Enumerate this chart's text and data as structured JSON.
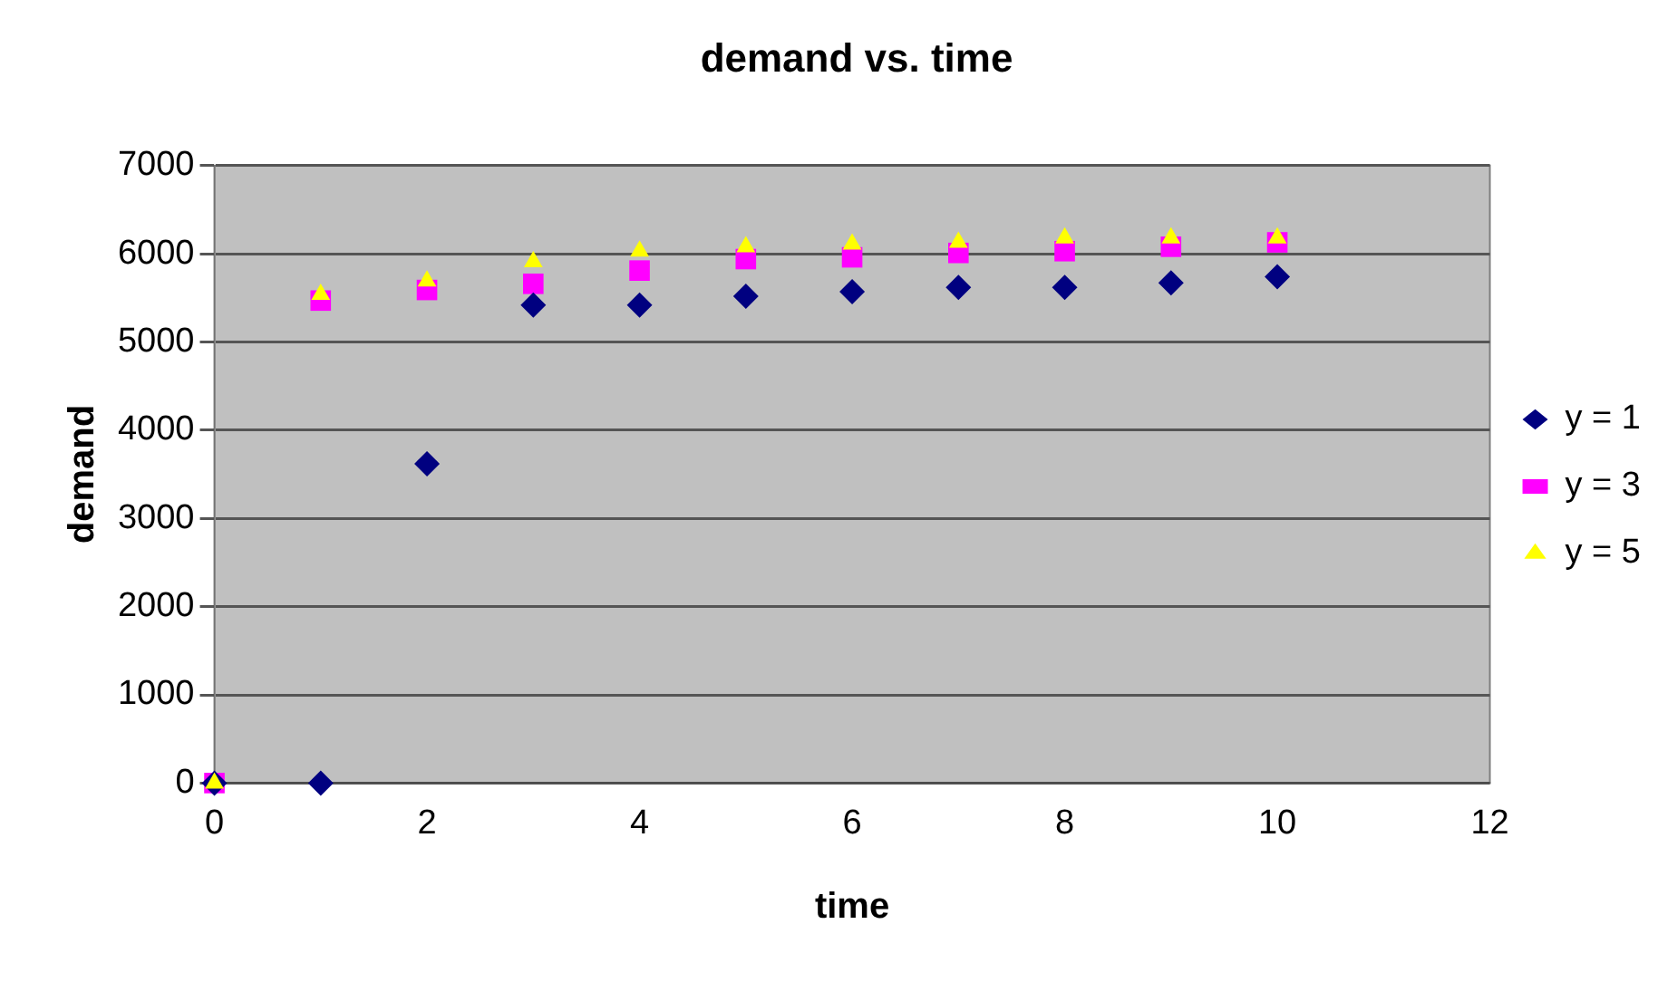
{
  "chart_data": {
    "type": "scatter",
    "title": "demand vs. time",
    "xlabel": "time",
    "ylabel": "demand",
    "xlim": [
      0,
      12
    ],
    "xticks": [
      0,
      2,
      4,
      6,
      8,
      10,
      12
    ],
    "ylim": [
      0,
      7000
    ],
    "yticks": [
      0,
      1000,
      2000,
      3000,
      4000,
      5000,
      6000,
      7000
    ],
    "grid": "y",
    "legend": "right",
    "series": [
      {
        "name": "y = 1",
        "color": "#000080",
        "marker": "diamond",
        "x": [
          0,
          1,
          2,
          3,
          4,
          5,
          6,
          7,
          8,
          9,
          10
        ],
        "values": [
          0,
          0,
          3620,
          5420,
          5420,
          5520,
          5570,
          5620,
          5620,
          5670,
          5740
        ]
      },
      {
        "name": "y = 3",
        "color": "#ff00ff",
        "marker": "square",
        "x": [
          0,
          1,
          2,
          3,
          4,
          5,
          6,
          7,
          8,
          9,
          10
        ],
        "values": [
          0,
          5470,
          5590,
          5660,
          5810,
          5940,
          5960,
          6010,
          6030,
          6080,
          6130
        ]
      },
      {
        "name": "y = 5",
        "color": "#ffff00",
        "marker": "triangle",
        "x": [
          0,
          1,
          2,
          3,
          4,
          5,
          6,
          7,
          8,
          9,
          10
        ],
        "values": [
          0,
          5540,
          5690,
          5910,
          6030,
          6080,
          6110,
          6130,
          6180,
          6180,
          6180
        ]
      }
    ]
  }
}
